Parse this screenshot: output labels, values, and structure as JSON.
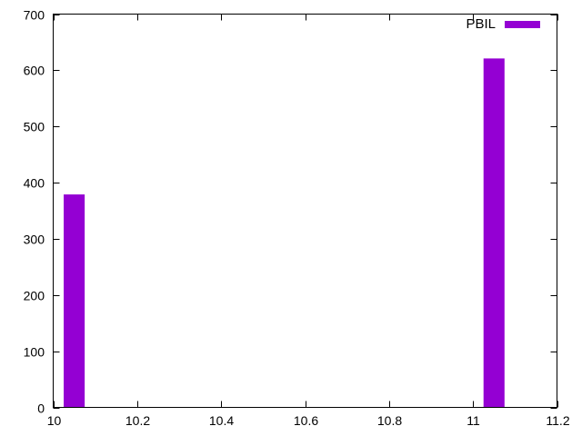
{
  "chart_data": {
    "type": "bar",
    "title": "",
    "xlabel": "",
    "ylabel": "",
    "xlim": [
      10,
      11.2
    ],
    "ylim": [
      0,
      700
    ],
    "x_ticks": [
      10,
      10.2,
      10.4,
      10.6,
      10.8,
      11,
      11.2
    ],
    "x_tick_labels": [
      "10",
      "10.2",
      "10.4",
      "10.6",
      "10.8",
      "11",
      "11.2"
    ],
    "y_ticks": [
      0,
      100,
      200,
      300,
      400,
      500,
      600,
      700
    ],
    "y_tick_labels": [
      "0",
      "100",
      "200",
      "300",
      "400",
      "500",
      "600",
      "700"
    ],
    "grid": false,
    "legend_position": "top-right",
    "bar_width": 0.05,
    "series": [
      {
        "name": "PBIL",
        "color": "#9400d3",
        "points": [
          {
            "x": 10.05,
            "y": 379
          },
          {
            "x": 11.05,
            "y": 621
          }
        ]
      }
    ]
  }
}
